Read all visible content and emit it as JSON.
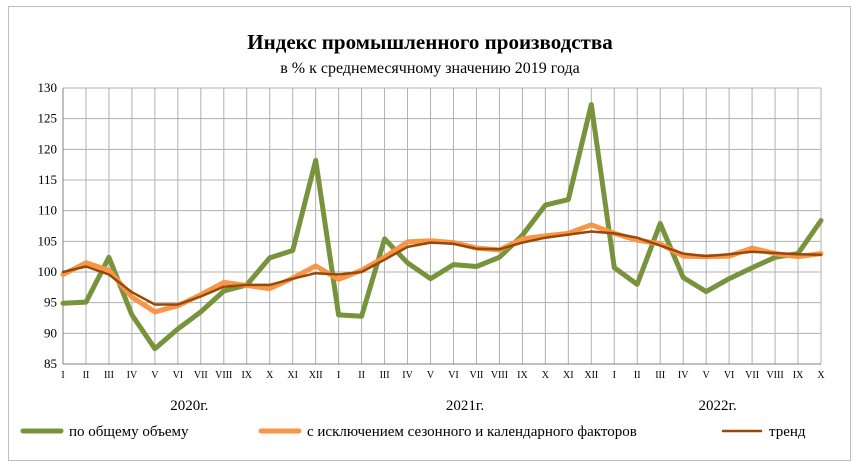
{
  "chart_data": {
    "type": "line",
    "title": "Индекс промышленного производства",
    "subtitle": "в % к среднемесячному значению 2019 года",
    "ylim": [
      85,
      130
    ],
    "yticks": [
      85,
      90,
      95,
      100,
      105,
      110,
      115,
      120,
      125,
      130
    ],
    "months": [
      "I",
      "II",
      "III",
      "IV",
      "V",
      "VI",
      "VII",
      "VIII",
      "IX",
      "X",
      "XI",
      "XII",
      "I",
      "II",
      "III",
      "IV",
      "V",
      "VI",
      "VII",
      "VIII",
      "IX",
      "X",
      "XI",
      "XII",
      "I",
      "II",
      "III",
      "IV",
      "V",
      "VI",
      "VII",
      "VIII",
      "IX",
      "X"
    ],
    "years": [
      {
        "label": "2020г.",
        "start": 0,
        "end": 11
      },
      {
        "label": "2021г.",
        "start": 12,
        "end": 23
      },
      {
        "label": "2022г.",
        "start": 24,
        "end": 33
      }
    ],
    "grid": true,
    "legend_position": "bottom",
    "series": [
      {
        "name": "по общему объему",
        "color": "#77933c",
        "values": [
          94.9,
          95.1,
          102.4,
          93.0,
          87.5,
          90.7,
          93.5,
          96.9,
          97.9,
          102.3,
          103.5,
          118.2,
          93.0,
          92.8,
          105.4,
          101.5,
          98.9,
          101.2,
          100.9,
          102.4,
          106.0,
          110.9,
          111.8,
          127.3,
          100.7,
          98.0,
          107.9,
          99.1,
          96.8,
          98.9,
          100.7,
          102.4,
          103.0,
          108.4
        ]
      },
      {
        "name": "с исключением сезонного и календарного факторов",
        "color": "#f79646",
        "values": [
          99.6,
          101.5,
          100.3,
          95.9,
          93.5,
          94.5,
          96.3,
          98.3,
          97.8,
          97.3,
          99.0,
          101.0,
          98.8,
          100.3,
          102.4,
          104.9,
          105.1,
          104.8,
          103.9,
          103.6,
          105.4,
          105.9,
          106.3,
          107.7,
          106.3,
          105.2,
          104.6,
          102.6,
          102.5,
          102.6,
          103.9,
          103.0,
          102.5,
          103.0
        ]
      },
      {
        "name": "тренд",
        "color": "#984807",
        "values": [
          100.0,
          100.9,
          99.6,
          96.7,
          94.7,
          94.7,
          96.0,
          97.6,
          97.9,
          97.9,
          98.9,
          99.8,
          99.6,
          100.0,
          102.0,
          104.1,
          104.8,
          104.6,
          103.8,
          103.7,
          104.8,
          105.6,
          106.1,
          106.6,
          106.3,
          105.6,
          104.3,
          103.0,
          102.6,
          102.9,
          103.3,
          103.1,
          102.9,
          102.8
        ]
      }
    ]
  }
}
